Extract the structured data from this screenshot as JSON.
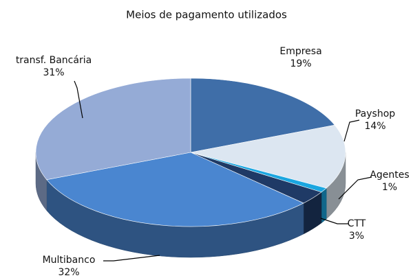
{
  "chart_data": {
    "type": "pie3d",
    "title": "Meios de pagamento utilizados",
    "categories": [
      "Empresa",
      "Payshop",
      "Agentes",
      "CTT",
      "Multibanco",
      "transf. Bancária"
    ],
    "values": [
      19,
      14,
      1,
      3,
      32,
      31
    ],
    "value_labels": [
      "19%",
      "14%",
      "1%",
      "3%",
      "32%",
      "31%"
    ],
    "colors": [
      "#3f6ea8",
      "#dce6f1",
      "#1ba6e0",
      "#1f3a66",
      "#4a86d0",
      "#95abd6"
    ]
  }
}
